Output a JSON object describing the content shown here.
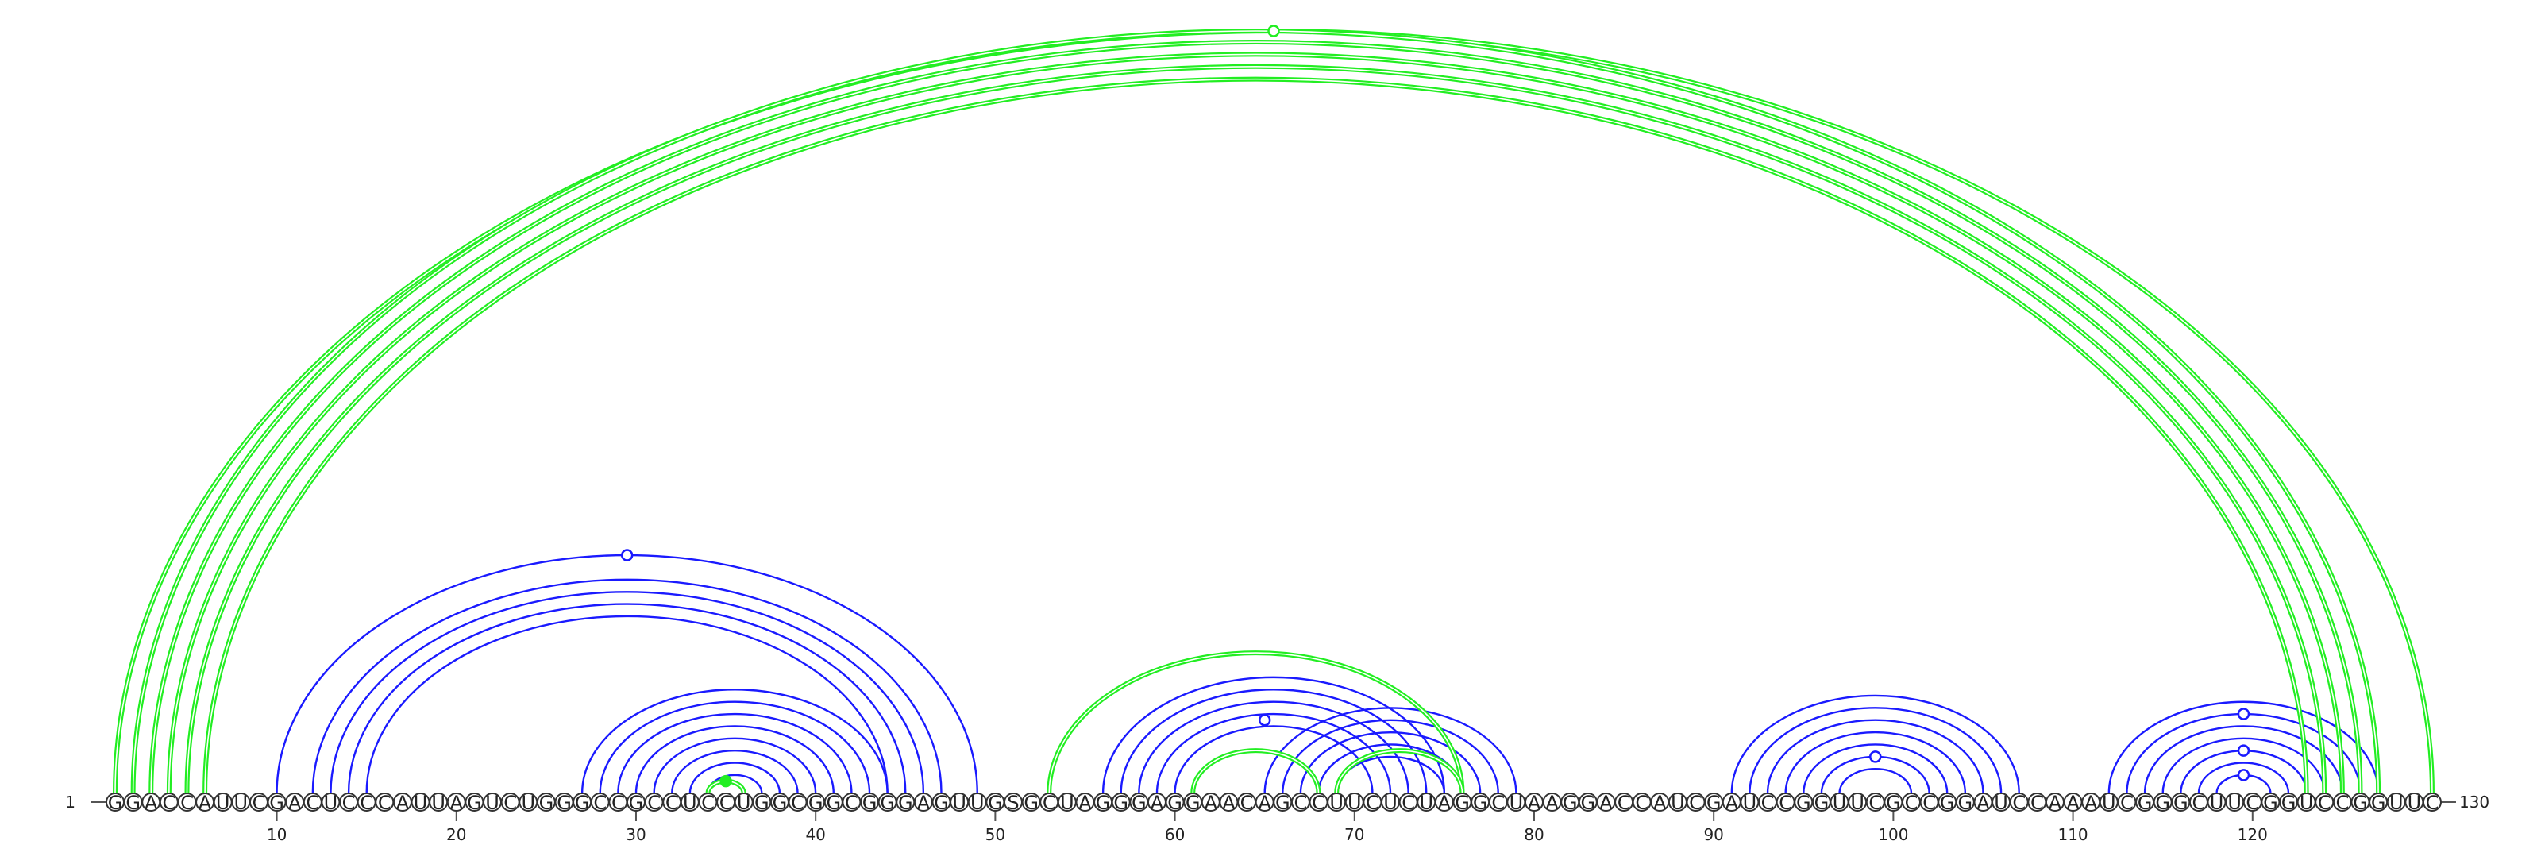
{
  "sequence": "GGACCAUUCGACUCCCAUUAGUCUGGGCCGCCUCCUGGCGGCGGGAGUUGSGCUAGGGAGGAACAGCCUUCUCUAGGCUAAGGACCAUCGAUCCGGUUCGCCGGAUCCAAAUCGGGCUUCGGUCCGGUUC",
  "start_label": "1",
  "end_label": "130",
  "ticks": [
    10,
    20,
    30,
    40,
    50,
    60,
    70,
    80,
    90,
    100,
    110,
    120
  ],
  "colors": {
    "blue": "#1a1aff",
    "green": "#22ee22"
  },
  "arc_groups": [
    {
      "color": "blue",
      "pairs": [
        [
          10,
          49
        ],
        [
          12,
          47
        ],
        [
          13,
          46
        ],
        [
          14,
          45
        ],
        [
          15,
          44
        ]
      ],
      "double": false
    },
    {
      "color": "blue",
      "pairs": [
        [
          27,
          44
        ],
        [
          28,
          43
        ],
        [
          29,
          42
        ],
        [
          30,
          41
        ],
        [
          31,
          40
        ],
        [
          32,
          39
        ],
        [
          33,
          38
        ],
        [
          34,
          37
        ]
      ],
      "double": false
    },
    {
      "color": "blue",
      "pairs": [
        [
          56,
          75
        ],
        [
          57,
          74
        ],
        [
          58,
          73
        ],
        [
          59,
          72
        ],
        [
          60,
          71
        ]
      ],
      "double": false
    },
    {
      "color": "blue",
      "pairs": [
        [
          65,
          79
        ],
        [
          66,
          78
        ],
        [
          67,
          77
        ],
        [
          68,
          76
        ],
        [
          69,
          75
        ]
      ],
      "double": false
    },
    {
      "color": "blue",
      "pairs": [
        [
          91,
          107
        ],
        [
          92,
          106
        ],
        [
          93,
          105
        ],
        [
          94,
          104
        ],
        [
          95,
          103
        ],
        [
          96,
          102
        ],
        [
          97,
          101
        ]
      ],
      "double": false
    },
    {
      "color": "blue",
      "pairs": [
        [
          112,
          127
        ],
        [
          113,
          126
        ],
        [
          114,
          125
        ],
        [
          115,
          124
        ],
        [
          116,
          123
        ],
        [
          117,
          122
        ],
        [
          118,
          121
        ]
      ],
      "double": false
    },
    {
      "color": "green",
      "pairs": [
        [
          53,
          76
        ],
        [
          61,
          68
        ],
        [
          69,
          76
        ]
      ],
      "double": true
    },
    {
      "color": "green",
      "pairs": [
        [
          34,
          36
        ]
      ],
      "double": true
    },
    {
      "color": "green",
      "pairs": [
        [
          1,
          130
        ],
        [
          2,
          127
        ],
        [
          3,
          126
        ],
        [
          4,
          125
        ],
        [
          5,
          124
        ],
        [
          6,
          123
        ]
      ],
      "double": true
    }
  ],
  "markers": [
    {
      "pair": [
        10,
        49
      ],
      "color": "blue",
      "filled": false
    },
    {
      "pair": [
        59,
        71
      ],
      "color": "blue",
      "filled": false
    },
    {
      "pair": [
        96,
        102
      ],
      "color": "blue",
      "filled": false
    },
    {
      "pair": [
        113,
        126
      ],
      "color": "blue",
      "filled": false
    },
    {
      "pair": [
        116,
        123
      ],
      "color": "blue",
      "filled": false
    },
    {
      "pair": [
        118,
        121
      ],
      "color": "blue",
      "filled": false
    },
    {
      "pair": [
        34,
        36
      ],
      "color": "green",
      "filled": true
    },
    {
      "pair": [
        1,
        130
      ],
      "color": "green",
      "filled": false
    }
  ]
}
